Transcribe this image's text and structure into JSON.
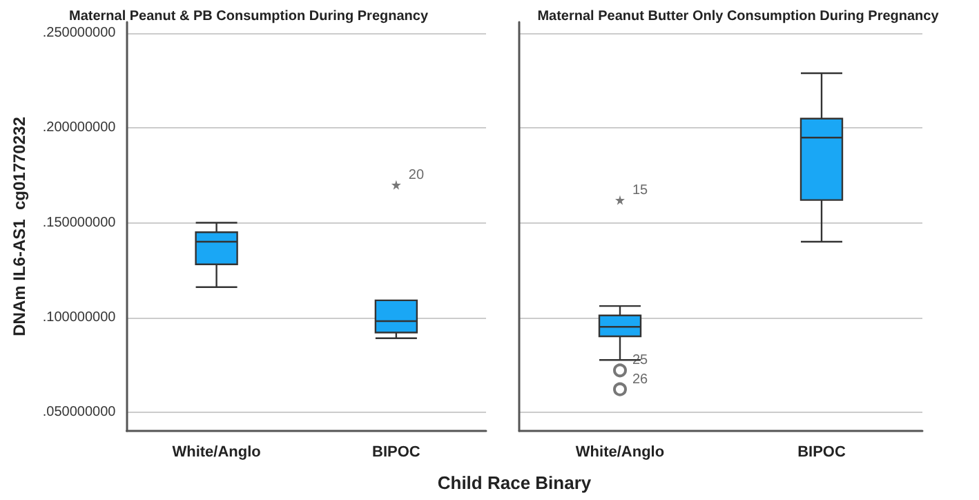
{
  "chart_data": [
    {
      "type": "box",
      "title": "Maternal Peanut & PB Consumption During Pregnancy",
      "xlabel": "Child Race Binary",
      "ylabel": "DNAm IL6-AS1  cg01770232",
      "categories": [
        "White/Anglo",
        "BIPOC"
      ],
      "color": "#1aa7f5",
      "boxes": [
        {
          "low": 0.116,
          "q1": 0.128,
          "median": 0.14,
          "q3": 0.145,
          "high": 0.15
        },
        {
          "low": 0.089,
          "q1": 0.092,
          "median": 0.098,
          "q3": 0.109,
          "high": 0.109
        }
      ],
      "series": [
        {
          "type": "scatter",
          "marker": "star",
          "color": "#555555",
          "x": [
            "BIPOC"
          ],
          "values": [
            0.17
          ]
        }
      ],
      "annotations": [
        {
          "text": "20",
          "x": "BIPOC",
          "y": 0.17
        }
      ],
      "ylim": [
        0.04,
        0.256
      ],
      "yticks": [
        {
          "value": 0.05,
          "label": ".050000000"
        },
        {
          "value": 0.1,
          "label": ".100000000"
        },
        {
          "value": 0.15,
          "label": ".150000000"
        },
        {
          "value": 0.2,
          "label": ".200000000"
        },
        {
          "value": 0.25,
          "label": ".250000000"
        }
      ],
      "grid": "y"
    },
    {
      "type": "box",
      "title": "Maternal Peanut Butter Only Consumption During Pregnancy",
      "categories": [
        "White/Anglo",
        "BIPOC"
      ],
      "color": "#1aa7f5",
      "boxes": [
        {
          "low": 0.0775,
          "q1": 0.09,
          "median": 0.095,
          "q3": 0.101,
          "high": 0.106
        },
        {
          "low": 0.14,
          "q1": 0.162,
          "median": 0.195,
          "q3": 0.205,
          "high": 0.229
        }
      ],
      "series": [
        {
          "type": "scatter",
          "marker": "star",
          "color": "#555555",
          "x": [
            "White/Anglo"
          ],
          "values": [
            0.162
          ]
        },
        {
          "type": "scatter",
          "marker": "circle",
          "color": "#555555",
          "x": [
            "White/Anglo",
            "White/Anglo"
          ],
          "values": [
            0.072,
            0.062
          ]
        }
      ],
      "annotations": [
        {
          "text": "15",
          "x": "White/Anglo",
          "y": 0.162
        },
        {
          "text": "25",
          "x": "White/Anglo",
          "y": 0.072
        },
        {
          "text": "26",
          "x": "White/Anglo",
          "y": 0.062
        }
      ],
      "ylim": [
        0.04,
        0.256
      ],
      "yticks": [
        0.05,
        0.1,
        0.15,
        0.2,
        0.25
      ],
      "grid": "y",
      "tick_labels": "x"
    }
  ]
}
